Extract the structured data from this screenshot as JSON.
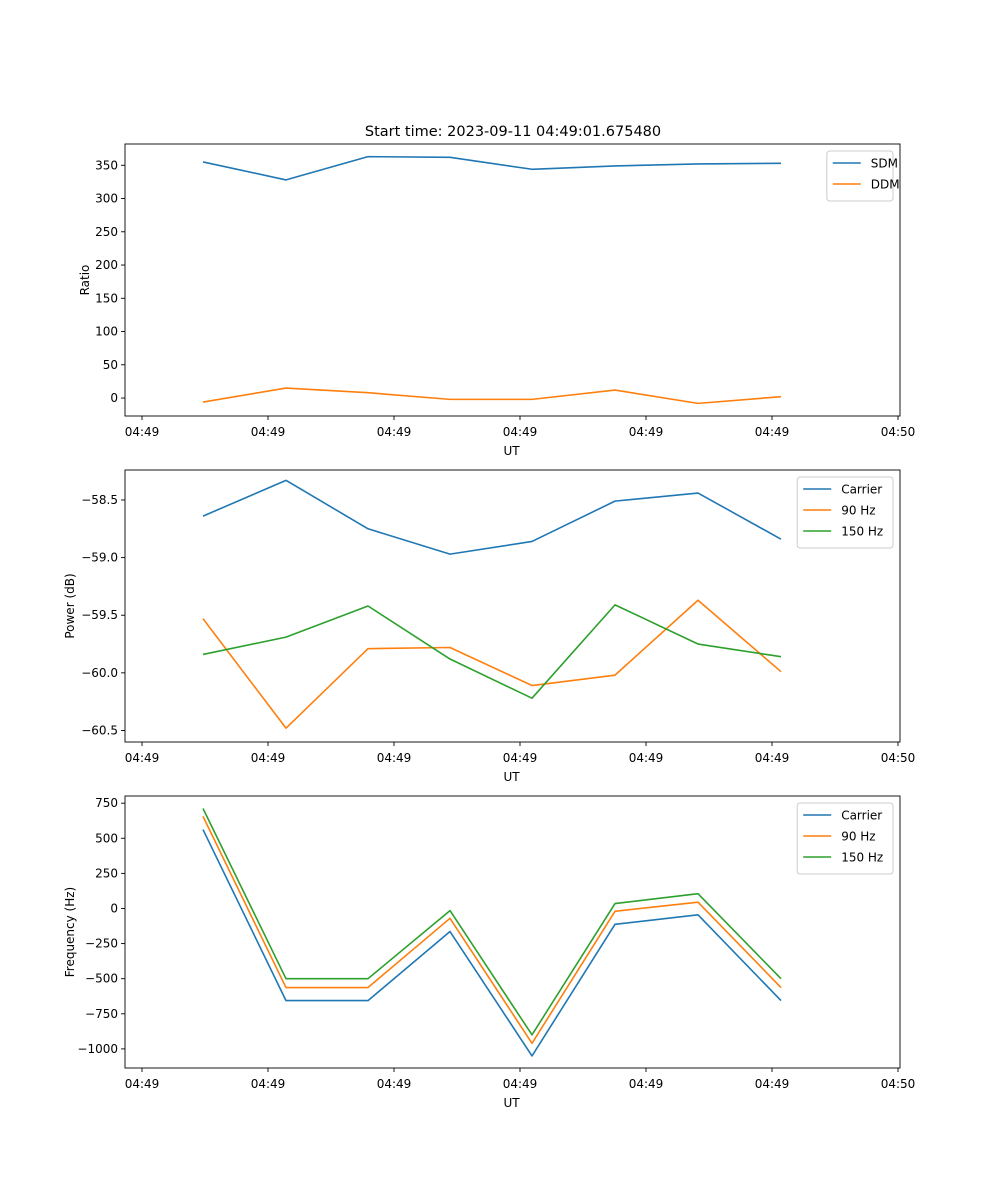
{
  "figure": {
    "title": "Start time: 2023-09-11 04:49:01.675480"
  },
  "colors": {
    "blue": "#1f77b4",
    "orange": "#ff7f0e",
    "green": "#2ca02c"
  },
  "chart_data": [
    {
      "type": "line",
      "title": "Start time: 2023-09-11 04:49:01.675480",
      "xlabel": "UT",
      "ylabel": "Ratio",
      "x_tick_labels": [
        "04:49",
        "04:49",
        "04:49",
        "04:49",
        "04:49",
        "04:49",
        "04:50"
      ],
      "y_ticks": [
        0,
        50,
        100,
        150,
        200,
        250,
        300,
        350
      ],
      "y_tick_labels": [
        "0",
        "50",
        "100",
        "150",
        "200",
        "250",
        "300",
        "350"
      ],
      "ylim": [
        -27,
        382
      ],
      "legend": "top-right",
      "series": [
        {
          "name": "SDM",
          "color": "blue",
          "values": [
            355,
            328,
            363,
            362,
            344,
            349,
            352,
            353
          ]
        },
        {
          "name": "DDM",
          "color": "orange",
          "values": [
            -6,
            15,
            8,
            -2,
            -2,
            12,
            -8,
            2
          ]
        }
      ]
    },
    {
      "type": "line",
      "title": "",
      "xlabel": "UT",
      "ylabel": "Power (dB)",
      "x_tick_labels": [
        "04:49",
        "04:49",
        "04:49",
        "04:49",
        "04:49",
        "04:49",
        "04:50"
      ],
      "y_ticks": [
        -60.5,
        -60.0,
        -59.5,
        -59.0,
        -58.5
      ],
      "y_tick_labels": [
        "−60.5",
        "−60.0",
        "−59.5",
        "−59.0",
        "−58.5"
      ],
      "ylim": [
        -60.6,
        -58.24
      ],
      "legend": "top-right",
      "series": [
        {
          "name": "Carrier",
          "color": "blue",
          "values": [
            -58.64,
            -58.33,
            -58.75,
            -58.97,
            -58.86,
            -58.51,
            -58.44,
            -58.84
          ]
        },
        {
          "name": "90 Hz",
          "color": "orange",
          "values": [
            -59.53,
            -60.48,
            -59.79,
            -59.78,
            -60.11,
            -60.02,
            -59.37,
            -59.99
          ]
        },
        {
          "name": "150 Hz",
          "color": "green",
          "values": [
            -59.84,
            -59.69,
            -59.42,
            -59.88,
            -60.22,
            -59.41,
            -59.75,
            -59.86
          ]
        }
      ]
    },
    {
      "type": "line",
      "title": "",
      "xlabel": "UT",
      "ylabel": "Frequency (Hz)",
      "x_tick_labels": [
        "04:49",
        "04:49",
        "04:49",
        "04:49",
        "04:49",
        "04:49",
        "04:50"
      ],
      "y_ticks": [
        -1000,
        -750,
        -500,
        -250,
        0,
        250,
        500,
        750
      ],
      "y_tick_labels": [
        "−1000",
        "−750",
        "−500",
        "−250",
        "0",
        "250",
        "500",
        "750"
      ],
      "ylim": [
        -1136,
        801
      ],
      "legend": "top-right",
      "series": [
        {
          "name": "Carrier",
          "color": "blue",
          "values": [
            562,
            -656,
            -656,
            -164,
            -1050,
            -113,
            -45,
            -656
          ]
        },
        {
          "name": "90 Hz",
          "color": "orange",
          "values": [
            656,
            -563,
            -563,
            -70,
            -960,
            -20,
            45,
            -563
          ]
        },
        {
          "name": "150 Hz",
          "color": "green",
          "values": [
            712,
            -500,
            -500,
            -15,
            -900,
            35,
            105,
            -500
          ]
        }
      ]
    }
  ]
}
